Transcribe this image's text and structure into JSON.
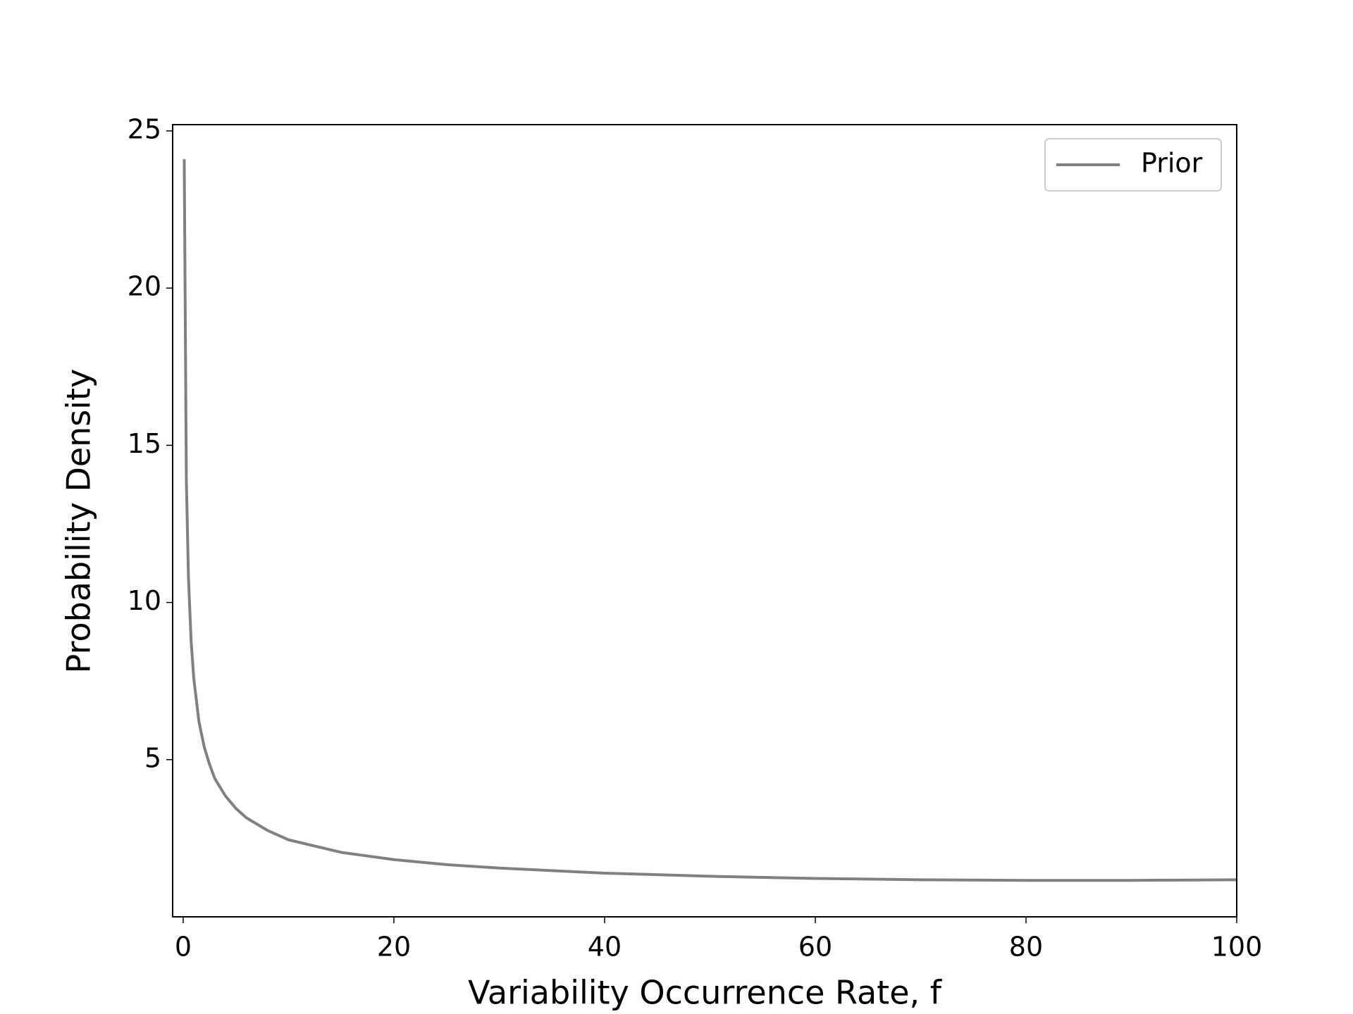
{
  "chart_data": {
    "type": "line",
    "xlabel": "Variability Occurrence Rate, f",
    "ylabel": "Probability Density",
    "x": [
      0.1,
      0.3,
      0.5,
      0.75,
      1,
      1.5,
      2,
      2.5,
      3,
      4,
      5,
      6,
      8,
      10,
      15,
      20,
      25,
      30,
      40,
      50,
      60,
      70,
      80,
      90,
      100
    ],
    "series": [
      {
        "name": "Prior",
        "color": "#808080",
        "values": [
          24.1,
          13.9,
          10.8,
          8.8,
          7.6,
          6.2,
          5.4,
          4.85,
          4.4,
          3.85,
          3.45,
          3.15,
          2.75,
          2.45,
          2.05,
          1.82,
          1.66,
          1.55,
          1.39,
          1.29,
          1.22,
          1.18,
          1.16,
          1.16,
          1.18
        ]
      }
    ],
    "xlim": [
      -1,
      100
    ],
    "ylim": [
      0,
      25.2
    ],
    "xticks": [
      0,
      20,
      40,
      60,
      80,
      100
    ],
    "yticks": [
      5,
      10,
      15,
      20,
      25
    ],
    "legend": "upper right"
  }
}
